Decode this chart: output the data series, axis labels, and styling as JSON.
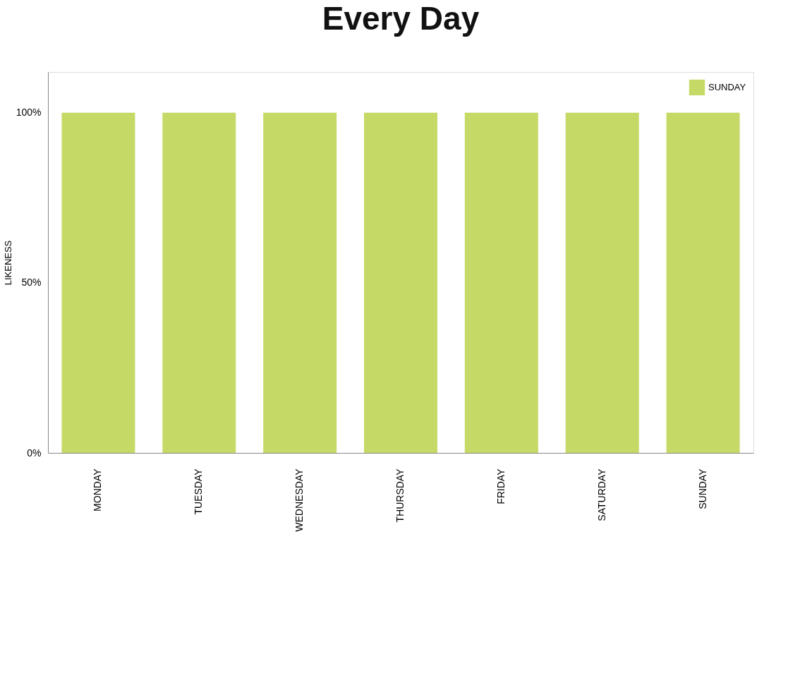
{
  "chart_data": {
    "type": "bar",
    "title": "Every Day",
    "ylabel": "LIKENESS",
    "categories": [
      "MONDAY",
      "TUESDAY",
      "WEDNESDAY",
      "THURSDAY",
      "FRIDAY",
      "SATURDAY",
      "SUNDAY"
    ],
    "series": [
      {
        "name": "SUNDAY",
        "color": "#c5da66",
        "values": [
          100,
          100,
          100,
          100,
          100,
          100,
          100
        ]
      }
    ],
    "ylim": [
      0,
      112
    ],
    "yticks": [
      {
        "value": 0,
        "label": "0%"
      },
      {
        "value": 50,
        "label": "50%"
      },
      {
        "value": 100,
        "label": "100%"
      }
    ],
    "grid": false,
    "legend": "top right"
  }
}
